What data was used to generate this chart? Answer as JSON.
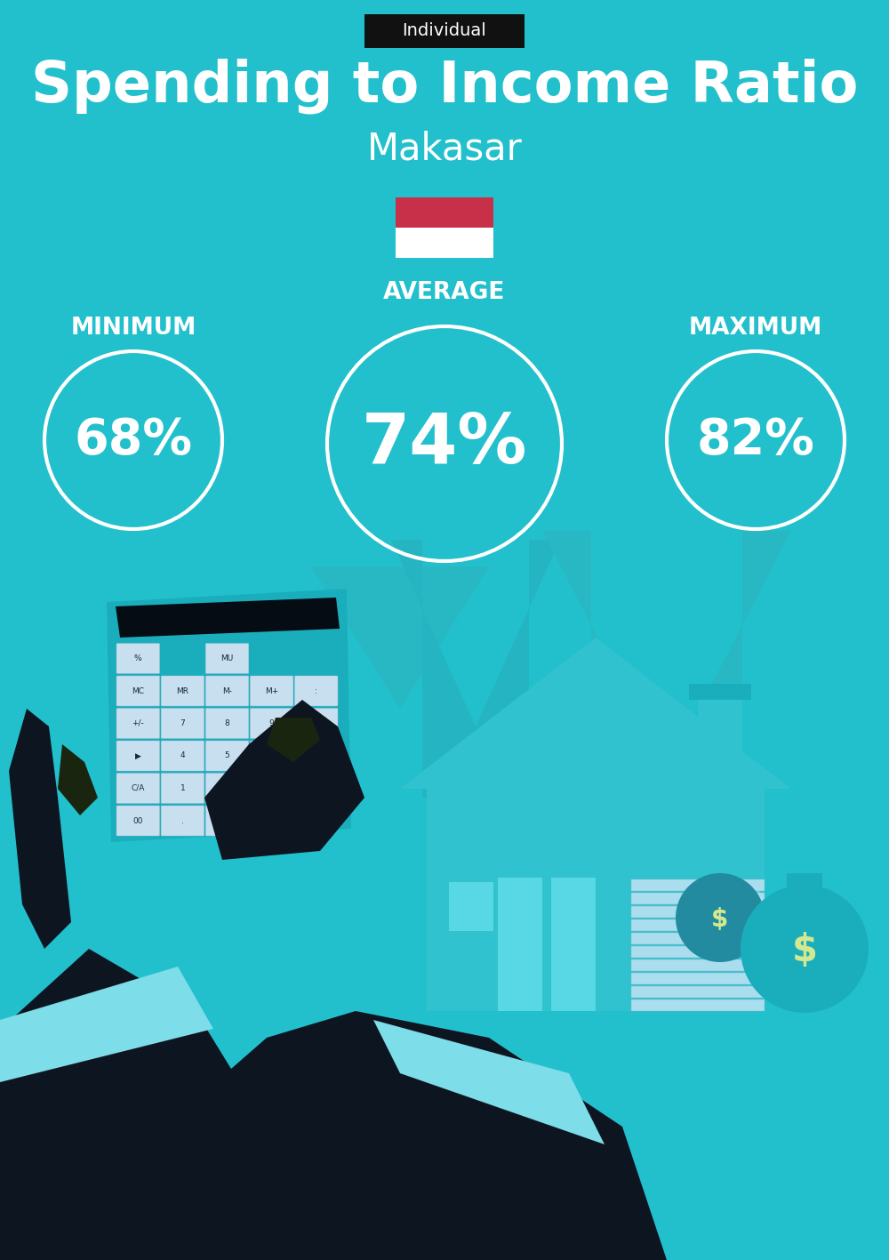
{
  "title": "Spending to Income Ratio",
  "city": "Makasar",
  "tag": "Individual",
  "min_label": "MINIMUM",
  "avg_label": "AVERAGE",
  "max_label": "MAXIMUM",
  "min_value": "68%",
  "avg_value": "74%",
  "max_value": "82%",
  "bg_color": "#22C0CC",
  "text_color": "#FFFFFF",
  "tag_bg": "#111111",
  "circle_color": "#FFFFFF",
  "flag_red": "#C8304A",
  "flag_white": "#FFFFFF",
  "circle_lw": 3.0,
  "title_fontsize": 46,
  "city_fontsize": 30,
  "tag_fontsize": 14,
  "label_fontsize": 19,
  "min_val_fontsize": 40,
  "avg_val_fontsize": 56,
  "max_val_fontsize": 40,
  "arrow_color": "#1AAEBC",
  "house_color_dark": "#1AAEBC",
  "house_color_light": "#44D4E0",
  "dark_color": "#0D1520",
  "cuff_color": "#7DDDE8",
  "calc_color": "#1AAEBC",
  "btn_color": "#C8DFF0"
}
